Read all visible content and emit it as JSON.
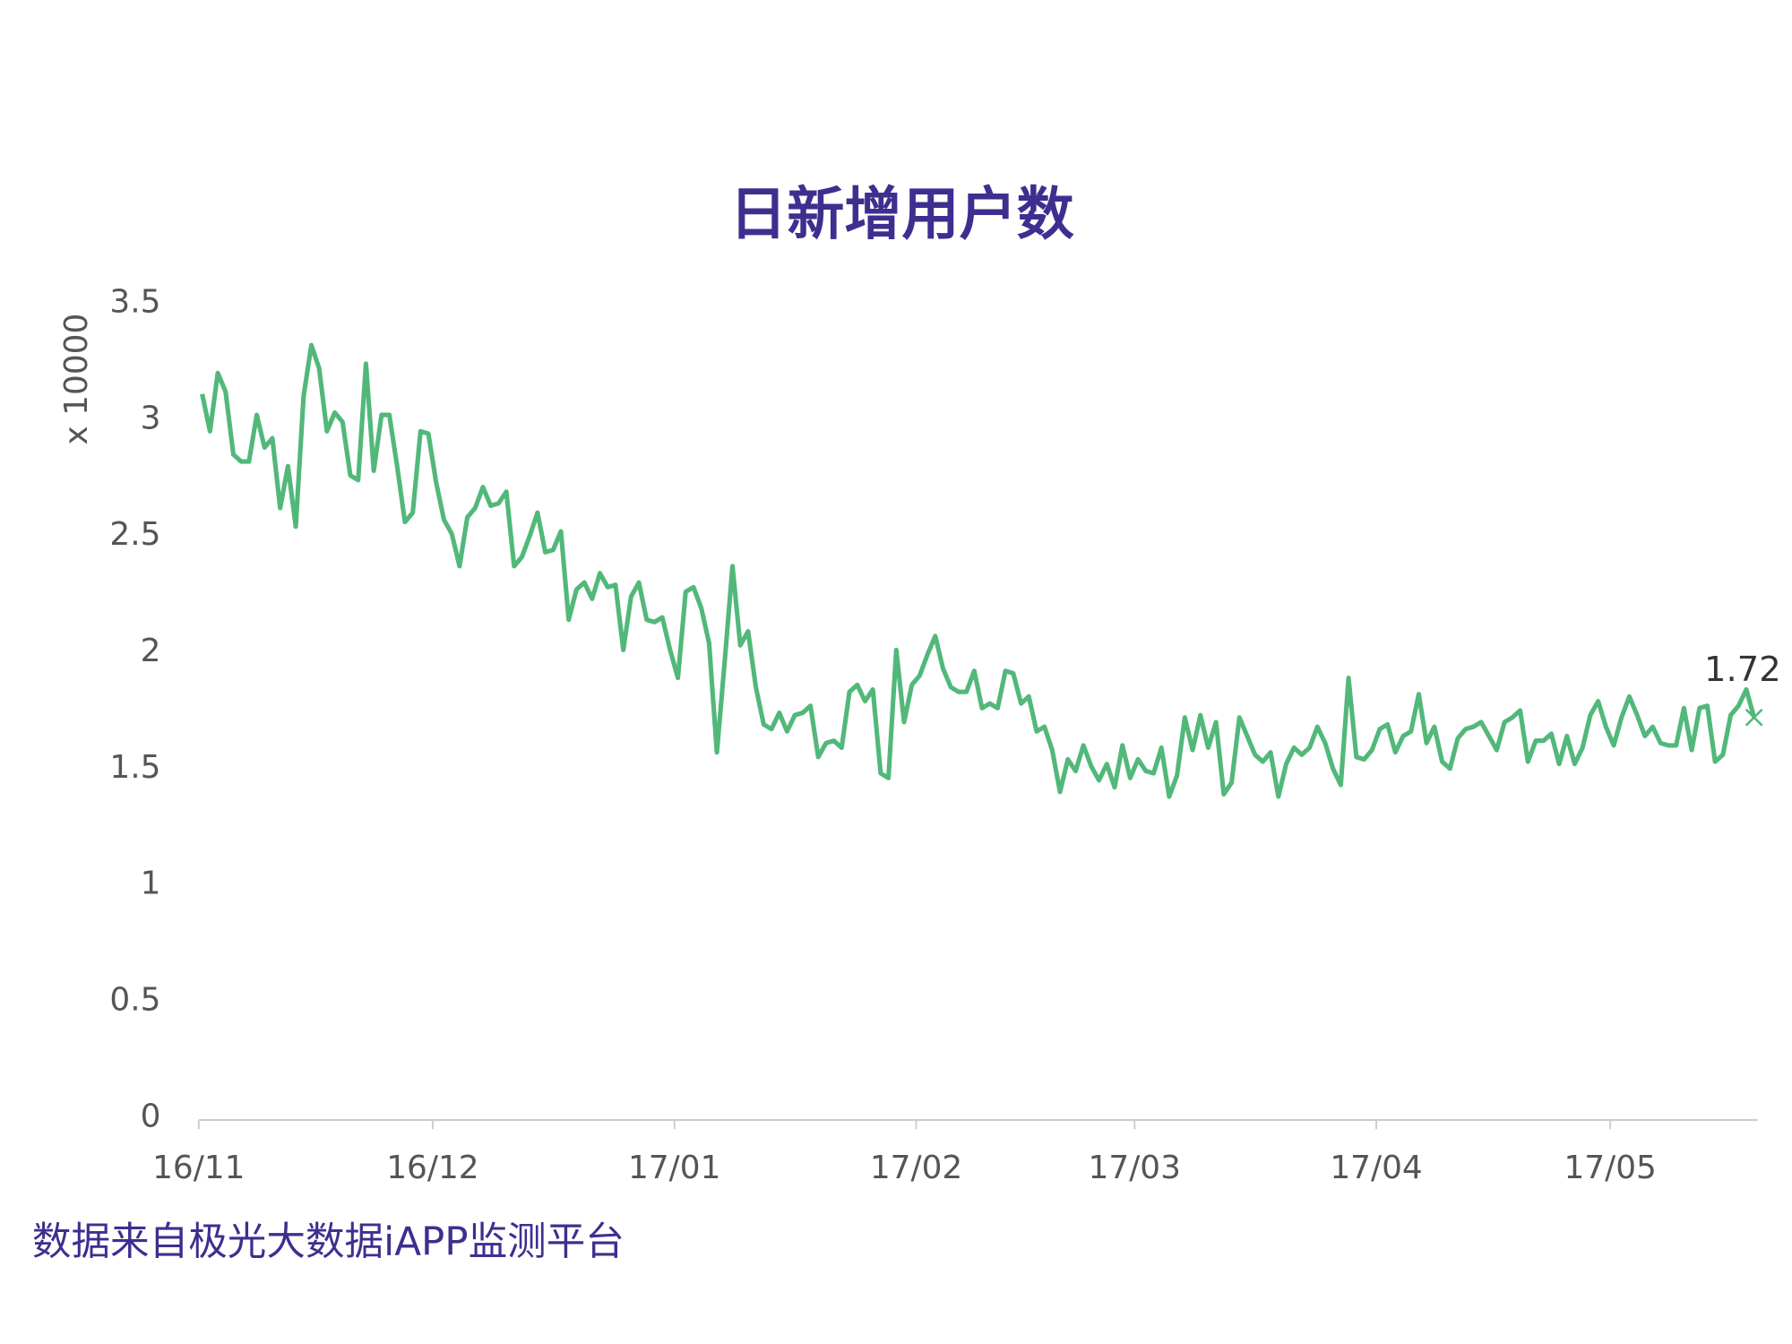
{
  "chart_data": {
    "type": "line",
    "title": "日新增用户数",
    "y_label": "x 10000",
    "source": "数据来自极光大数据iAPP监测平台",
    "categories": [
      "16/11",
      null,
      null,
      null,
      null,
      null,
      null,
      null,
      null,
      null,
      null,
      null,
      null,
      null,
      null,
      null,
      null,
      null,
      null,
      null,
      null,
      null,
      null,
      null,
      null,
      null,
      null,
      null,
      null,
      null,
      "16/12",
      null,
      null,
      null,
      null,
      null,
      null,
      null,
      null,
      null,
      null,
      null,
      null,
      null,
      null,
      null,
      null,
      null,
      null,
      null,
      null,
      null,
      null,
      null,
      null,
      null,
      null,
      null,
      null,
      null,
      null,
      "17/01",
      null,
      null,
      null,
      null,
      null,
      null,
      null,
      null,
      null,
      null,
      null,
      null,
      null,
      null,
      null,
      null,
      null,
      null,
      null,
      null,
      null,
      null,
      null,
      null,
      null,
      null,
      null,
      null,
      null,
      null,
      "17/02",
      null,
      null,
      null,
      null,
      null,
      null,
      null,
      null,
      null,
      null,
      null,
      null,
      null,
      null,
      null,
      null,
      null,
      null,
      null,
      null,
      null,
      null,
      null,
      null,
      null,
      null,
      null,
      "17/03",
      null,
      null,
      null,
      null,
      null,
      null,
      null,
      null,
      null,
      null,
      null,
      null,
      null,
      null,
      null,
      null,
      null,
      null,
      null,
      null,
      null,
      null,
      null,
      null,
      null,
      null,
      null,
      null,
      null,
      null,
      "17/04",
      null,
      null,
      null,
      null,
      null,
      null,
      null,
      null,
      null,
      null,
      null,
      null,
      null,
      null,
      null,
      null,
      null,
      null,
      null,
      null,
      null,
      null,
      null,
      null,
      null,
      null,
      null,
      null,
      null,
      "17/05",
      null,
      null,
      null,
      null,
      null,
      null,
      null,
      null,
      null,
      null,
      null,
      null,
      null,
      null,
      null,
      null,
      null,
      null
    ],
    "series": [
      {
        "color": "#52b87a",
        "values": [
          3.11,
          2.95,
          3.2,
          3.12,
          2.85,
          2.82,
          2.82,
          3.02,
          2.88,
          2.92,
          2.62,
          2.8,
          2.54,
          3.1,
          3.32,
          3.22,
          2.95,
          3.03,
          2.99,
          2.76,
          2.74,
          3.24,
          2.78,
          3.02,
          3.02,
          2.8,
          2.56,
          2.6,
          2.95,
          2.94,
          2.73,
          2.57,
          2.51,
          2.37,
          2.58,
          2.62,
          2.71,
          2.63,
          2.64,
          2.69,
          2.37,
          2.41,
          2.5,
          2.6,
          2.43,
          2.44,
          2.52,
          2.14,
          2.27,
          2.3,
          2.23,
          2.34,
          2.28,
          2.29,
          2.01,
          2.24,
          2.3,
          2.14,
          2.13,
          2.15,
          2.01,
          1.89,
          2.26,
          2.28,
          2.19,
          2.04,
          1.57,
          1.96,
          2.37,
          2.03,
          2.09,
          1.85,
          1.69,
          1.67,
          1.74,
          1.66,
          1.73,
          1.74,
          1.77,
          1.55,
          1.61,
          1.62,
          1.59,
          1.83,
          1.86,
          1.79,
          1.84,
          1.48,
          1.46,
          2.01,
          1.7,
          1.86,
          1.9,
          1.99,
          2.07,
          1.93,
          1.85,
          1.83,
          1.83,
          1.92,
          1.76,
          1.78,
          1.76,
          1.92,
          1.91,
          1.78,
          1.81,
          1.66,
          1.68,
          1.58,
          1.4,
          1.54,
          1.49,
          1.6,
          1.51,
          1.45,
          1.52,
          1.42,
          1.6,
          1.46,
          1.54,
          1.49,
          1.48,
          1.59,
          1.38,
          1.47,
          1.72,
          1.58,
          1.73,
          1.59,
          1.7,
          1.39,
          1.44,
          1.72,
          1.64,
          1.56,
          1.53,
          1.57,
          1.38,
          1.52,
          1.59,
          1.56,
          1.59,
          1.68,
          1.61,
          1.5,
          1.43,
          1.89,
          1.55,
          1.54,
          1.58,
          1.67,
          1.69,
          1.57,
          1.64,
          1.66,
          1.82,
          1.61,
          1.68,
          1.53,
          1.5,
          1.63,
          1.67,
          1.68,
          1.7,
          1.64,
          1.58,
          1.7,
          1.72,
          1.75,
          1.53,
          1.62,
          1.62,
          1.65,
          1.52,
          1.64,
          1.52,
          1.59,
          1.73,
          1.79,
          1.68,
          1.6,
          1.72,
          1.81,
          1.73,
          1.64,
          1.68,
          1.61,
          1.6,
          1.6,
          1.76,
          1.58,
          1.76,
          1.77,
          1.53,
          1.56,
          1.73,
          1.77,
          1.84,
          1.72
        ]
      }
    ],
    "ylim": [
      0,
      3.5
    ],
    "yticks": [
      0,
      0.5,
      1,
      1.5,
      2,
      2.5,
      3,
      3.5
    ],
    "grid": false,
    "end_label": true
  }
}
